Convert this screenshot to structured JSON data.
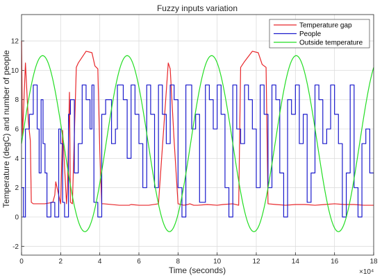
{
  "chart_data": {
    "type": "line",
    "title": "Fuzzy inputs variation",
    "xlabel": "Time (seconds)",
    "ylabel": "Temperature (degC) and number of people",
    "x_exponent_label": "×10⁴",
    "xlim": [
      0,
      18
    ],
    "ylim": [
      -2.6,
      13.8
    ],
    "x_ticks": [
      0,
      2,
      4,
      6,
      8,
      10,
      12,
      14,
      16,
      18
    ],
    "y_ticks": [
      -2,
      0,
      2,
      4,
      6,
      8,
      10,
      12
    ],
    "x_tick_labels": [
      "0",
      "2",
      "4",
      "6",
      "8",
      "10",
      "12",
      "14",
      "16",
      "18"
    ],
    "y_tick_labels": [
      "-2",
      "0",
      "2",
      "4",
      "6",
      "8",
      "10",
      "12"
    ],
    "grid": true,
    "legend_position": "top-right",
    "series": [
      {
        "name": "Temperature gap",
        "color": "#e8262a",
        "style": "line",
        "x": [
          0,
          0.05,
          0.2,
          0.35,
          0.45,
          0.5,
          0.6,
          1.2,
          1.6,
          1.7,
          1.75,
          2.0,
          2.1,
          2.3,
          2.35,
          2.45,
          2.5,
          2.6,
          2.8,
          2.9,
          3.3,
          3.6,
          3.75,
          3.9,
          4.0,
          4.1,
          4.2,
          5.0,
          5.4,
          5.5,
          5.6,
          6.0,
          6.5,
          7.0,
          7.5,
          7.6,
          7.8,
          8.0,
          8.3,
          8.5,
          8.6,
          8.8,
          9.0,
          9.5,
          10.0,
          10.3,
          10.8,
          11.1,
          11.2,
          11.4,
          11.8,
          12.1,
          12.3,
          12.5,
          12.6,
          13.0,
          13.5,
          14.0,
          14.5,
          15.0,
          15.5,
          16.0,
          16.5,
          17.0,
          17.5,
          18
        ],
        "y": [
          12,
          5.5,
          10.5,
          6.5,
          5.2,
          1.0,
          0.9,
          0.9,
          1.0,
          1.5,
          2.4,
          0.9,
          5.9,
          0.9,
          2.0,
          8.5,
          1.0,
          0.9,
          10.2,
          10.5,
          11.3,
          11.2,
          10.3,
          10.1,
          4.5,
          0.9,
          0.9,
          0.8,
          0.8,
          0.8,
          0.85,
          0.8,
          0.8,
          0.9,
          10.5,
          10.1,
          5.2,
          0.9,
          0.8,
          0.85,
          0.9,
          0.8,
          0.8,
          0.85,
          0.8,
          0.85,
          0.9,
          0.8,
          10.2,
          10.6,
          11.3,
          11.2,
          10.4,
          10.2,
          0.9,
          0.85,
          0.8,
          0.85,
          0.85,
          0.8,
          0.85,
          0.9,
          0.85,
          0.85,
          0.8,
          0.8
        ]
      },
      {
        "name": "People",
        "color": "#1a1acc",
        "style": "step",
        "x": [
          0,
          0.1,
          0.2,
          0.4,
          0.6,
          0.8,
          0.9,
          1.0,
          1.1,
          1.2,
          1.3,
          1.5,
          1.7,
          1.9,
          2.0,
          2.1,
          2.2,
          2.4,
          2.5,
          2.7,
          2.9,
          3.1,
          3.3,
          3.5,
          3.6,
          3.7,
          3.9,
          4.1,
          4.3,
          4.6,
          4.8,
          4.9,
          5.2,
          5.4,
          5.6,
          5.8,
          6.0,
          6.2,
          6.4,
          6.6,
          6.8,
          7.0,
          7.2,
          7.4,
          7.6,
          7.8,
          8.0,
          8.2,
          8.4,
          8.7,
          8.9,
          9.1,
          9.4,
          9.6,
          9.8,
          10.0,
          10.2,
          10.4,
          10.6,
          10.8,
          11.0,
          11.2,
          11.4,
          11.6,
          11.8,
          12.0,
          12.2,
          12.4,
          12.6,
          12.8,
          13.0,
          13.2,
          13.4,
          13.6,
          13.8,
          14.0,
          14.2,
          14.4,
          14.6,
          14.8,
          15.0,
          15.2,
          15.4,
          15.6,
          15.8,
          16.0,
          16.2,
          16.4,
          16.6,
          16.8,
          17.0,
          17.2,
          17.4,
          17.6,
          17.8,
          18
        ],
        "y": [
          2,
          0,
          6,
          7,
          9,
          6,
          3,
          8,
          5,
          3,
          0,
          1,
          0,
          6,
          5,
          1,
          0,
          7,
          8,
          3,
          5,
          9,
          8,
          6,
          9,
          1,
          0,
          7,
          8,
          5,
          6,
          9,
          8,
          4,
          9,
          7,
          5,
          2,
          9,
          7,
          2,
          9,
          7,
          5,
          9,
          8,
          2,
          0,
          9,
          6,
          7,
          1,
          9,
          8,
          6,
          9,
          7,
          2,
          0,
          9,
          6,
          5,
          9,
          8,
          6,
          2,
          9,
          7,
          2,
          9,
          8,
          3,
          0,
          8,
          7,
          9,
          5,
          7,
          1,
          3,
          9,
          8,
          5,
          6,
          9,
          7,
          5,
          0,
          3,
          9,
          2,
          0,
          5,
          6,
          3,
          3
        ]
      },
      {
        "name": "Outside temperature",
        "color": "#22dd22",
        "style": "line",
        "function": {
          "mean": 5,
          "amplitude": 6,
          "period": 4.32,
          "phase_peak_x": 1.08
        }
      }
    ]
  }
}
